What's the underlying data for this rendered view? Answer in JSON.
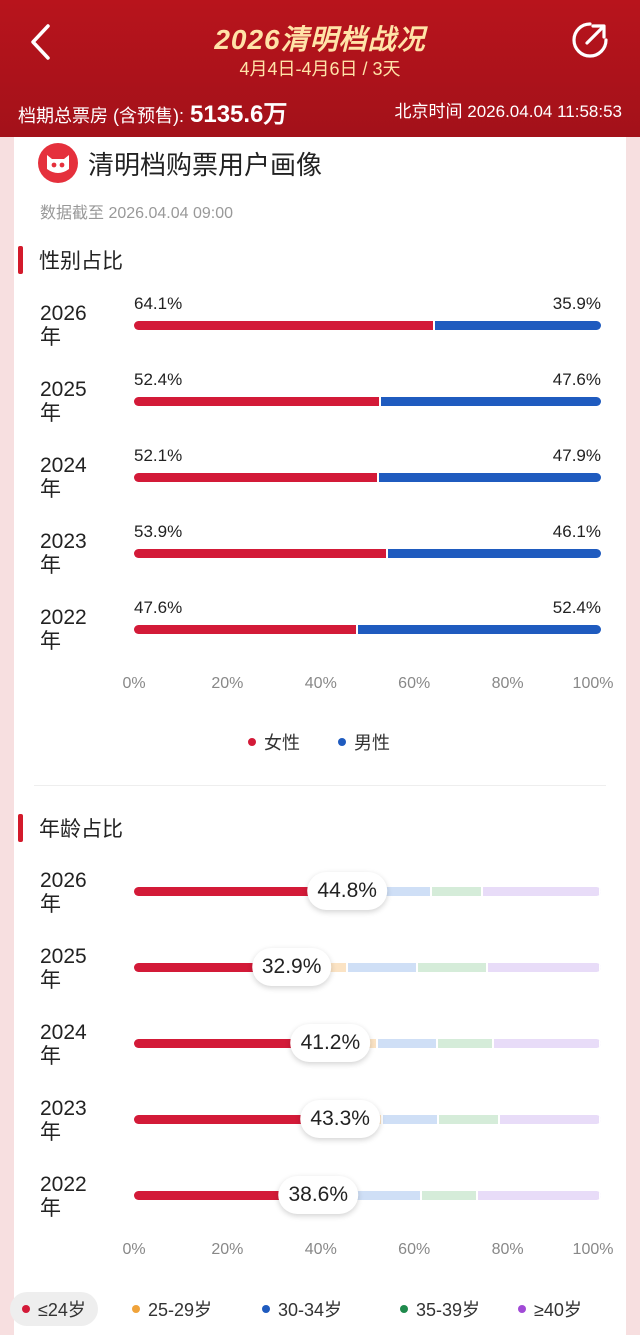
{
  "header": {
    "title": "2026清明档战况",
    "date_range": "4月4日-4月6日 / 3天",
    "boxoffice_label": "档期总票房 (含预售):",
    "boxoffice_value": "5135.6万",
    "beijing_time": "北京时间 2026.04.04 11:58:53"
  },
  "portrait": {
    "title": "清明档购票用户画像",
    "cutoff": "数据截至 2026.04.04 09:00"
  },
  "colors": {
    "female": "#d31a38",
    "male": "#1f5bbf",
    "age_le24": "#d31a38",
    "age_25_29": "#fbe3c4",
    "age_30_34": "#cfdff6",
    "age_35_39": "#d5ecd9",
    "age_ge40": "#e8dcf8"
  },
  "gender": {
    "title": "性别占比",
    "legend": [
      "女性",
      "男性"
    ],
    "axis": [
      "0%",
      "20%",
      "40%",
      "60%",
      "80%",
      "100%"
    ]
  },
  "age": {
    "title": "年龄占比",
    "axis": [
      "0%",
      "20%",
      "40%",
      "60%",
      "80%",
      "100%"
    ],
    "legend": [
      "≤24岁",
      "25-29岁",
      "30-34岁",
      "35-39岁",
      "≥40岁"
    ]
  },
  "chart_data": [
    {
      "type": "bar",
      "title": "性别占比",
      "stacked": true,
      "orientation": "horizontal",
      "categories": [
        "2026年",
        "2025年",
        "2024年",
        "2023年",
        "2022年"
      ],
      "series": [
        {
          "name": "女性",
          "values": [
            64.1,
            52.4,
            52.1,
            53.9,
            47.6
          ]
        },
        {
          "name": "男性",
          "values": [
            35.9,
            47.6,
            47.9,
            46.1,
            52.4
          ]
        }
      ],
      "labels": {
        "female": [
          "64.1%",
          "52.4%",
          "52.1%",
          "53.9%",
          "47.6%"
        ],
        "male": [
          "35.9%",
          "47.6%",
          "47.9%",
          "46.1%",
          "52.4%"
        ]
      },
      "xlim": [
        0,
        100
      ],
      "legend": "bottom-center"
    },
    {
      "type": "bar",
      "title": "年龄占比",
      "stacked": true,
      "orientation": "horizontal",
      "categories": [
        "2026年",
        "2025年",
        "2024年",
        "2023年",
        "2022年"
      ],
      "series": [
        {
          "name": "≤24岁",
          "values": [
            44.8,
            32.9,
            41.2,
            43.3,
            38.6
          ]
        },
        {
          "name": "25-29岁",
          "values": [
            7,
            13,
            11,
            10,
            8
          ]
        },
        {
          "name": "30-34岁",
          "values": [
            12,
            15,
            13,
            12,
            15
          ]
        },
        {
          "name": "35-39岁",
          "values": [
            11,
            15,
            12,
            13,
            12
          ]
        },
        {
          "name": "≥40岁",
          "values": [
            25.2,
            24.1,
            22.8,
            21.7,
            26.4
          ]
        }
      ],
      "labels": [
        "44.8%",
        "32.9%",
        "41.2%",
        "43.3%",
        "38.6%"
      ],
      "xlim": [
        0,
        100
      ],
      "legend": "bottom"
    }
  ]
}
